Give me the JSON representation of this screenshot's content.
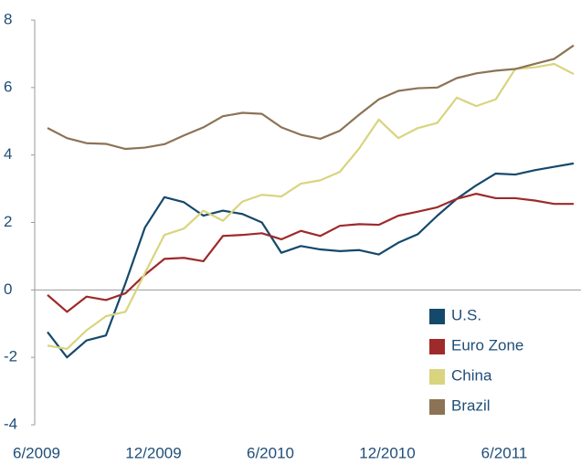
{
  "chart_data": {
    "type": "line",
    "categories": [
      "6/2009",
      null,
      null,
      null,
      null,
      null,
      "12/2009",
      null,
      null,
      null,
      null,
      null,
      "6/2010",
      null,
      null,
      null,
      null,
      null,
      "12/2010",
      null,
      null,
      null,
      null,
      null,
      "6/2011",
      null,
      null,
      null
    ],
    "series": [
      {
        "name": "U.S.",
        "color": "#14496b",
        "values": [
          -1.25,
          -2.0,
          -1.5,
          -1.35,
          0.2,
          1.85,
          2.75,
          2.6,
          2.2,
          2.35,
          2.25,
          2.0,
          1.1,
          1.3,
          1.2,
          1.15,
          1.18,
          1.05,
          1.4,
          1.65,
          2.2,
          2.7,
          3.1,
          3.45,
          3.42,
          3.55,
          3.65,
          3.75
        ]
      },
      {
        "name": "Euro Zone",
        "color": "#9e2a2b",
        "values": [
          -0.15,
          -0.65,
          -0.2,
          -0.3,
          -0.1,
          0.45,
          0.92,
          0.95,
          0.85,
          1.6,
          1.63,
          1.68,
          1.5,
          1.75,
          1.6,
          1.9,
          1.95,
          1.93,
          2.2,
          2.32,
          2.45,
          2.7,
          2.85,
          2.72,
          2.72,
          2.65,
          2.55,
          2.55
        ]
      },
      {
        "name": "China",
        "color": "#d9d47e",
        "values": [
          -1.65,
          -1.75,
          -1.2,
          -0.78,
          -0.65,
          0.5,
          1.63,
          1.82,
          2.35,
          2.05,
          2.62,
          2.82,
          2.77,
          3.15,
          3.25,
          3.5,
          4.2,
          5.05,
          4.5,
          4.8,
          4.95,
          5.7,
          5.45,
          5.65,
          6.55,
          6.6,
          6.7,
          6.4
        ]
      },
      {
        "name": "Brazil",
        "color": "#8c7355",
        "values": [
          4.8,
          4.5,
          4.35,
          4.33,
          4.18,
          4.22,
          4.32,
          4.58,
          4.82,
          5.15,
          5.25,
          5.22,
          4.82,
          4.6,
          4.48,
          4.72,
          5.2,
          5.65,
          5.9,
          5.98,
          6.0,
          6.28,
          6.42,
          6.5,
          6.55,
          6.7,
          6.85,
          7.25
        ]
      }
    ],
    "ylim": [
      -4,
      8
    ],
    "yticks": [
      -4,
      -2,
      0,
      2,
      4,
      6,
      8
    ],
    "legend": "lower right"
  }
}
